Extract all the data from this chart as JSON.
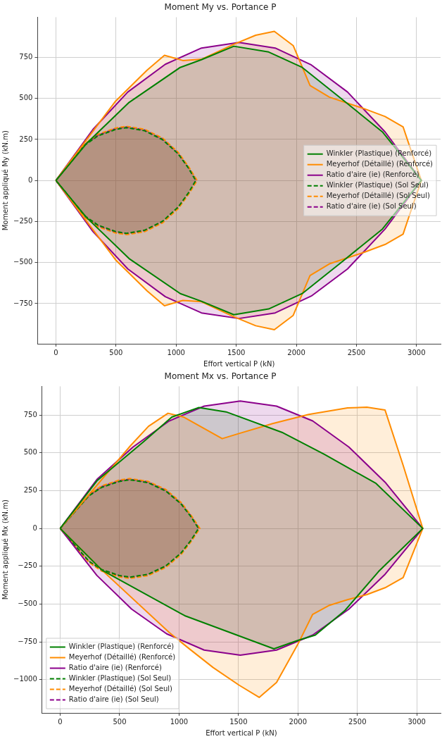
{
  "chart_data": [
    {
      "type": "area",
      "title": "Moment My vs. Portance P",
      "xlabel": "Effort vertical P (kN)",
      "ylabel": "Moment appliqué My (kN.m)",
      "xlim": [
        -152,
        3200
      ],
      "ylim": [
        -995,
        995
      ],
      "xticks": [
        0,
        500,
        1000,
        1500,
        2000,
        2500,
        3000
      ],
      "yticks": [
        -750,
        -500,
        -250,
        0,
        250,
        500,
        750
      ],
      "grid": true,
      "legend": "right",
      "series": [
        {
          "name": "Winkler (Plastique) (Renforcé)",
          "color": "#008000",
          "line_style": "solid",
          "x": [
            0,
            254,
            609,
            1034,
            1210,
            1480,
            1770,
            2049,
            2372,
            2716,
            3040,
            2716,
            2372,
            2049,
            1770,
            1480,
            1210,
            1034,
            609,
            254,
            0
          ],
          "values": [
            0,
            225,
            476,
            689,
            736,
            818,
            783,
            689,
            500,
            296,
            0,
            -296,
            -500,
            -689,
            -783,
            -818,
            -736,
            -689,
            -476,
            -225,
            0
          ]
        },
        {
          "name": "Meyerhof (Détaillé) (Renforcé)",
          "color": "#ff8c00",
          "line_style": "solid",
          "x": [
            0,
            497,
            759,
            903,
            1056,
            1211,
            1480,
            1662,
            1817,
            1974,
            2114,
            2275,
            2566,
            2738,
            2888,
            2931,
            3040,
            2931,
            2888,
            2738,
            2566,
            2275,
            2114,
            1974,
            1817,
            1662,
            1480,
            1211,
            1056,
            903,
            759,
            497,
            0
          ],
          "values": [
            0,
            484,
            673,
            763,
            731,
            739,
            830,
            885,
            909,
            822,
            579,
            508,
            437,
            390,
            327,
            233,
            0,
            -233,
            -327,
            -390,
            -437,
            -508,
            -579,
            -822,
            -909,
            -885,
            -830,
            -739,
            -731,
            -763,
            -673,
            -484,
            0
          ]
        },
        {
          "name": "Ratio d'aire (ie) (Renforcé)",
          "color": "#8b008b",
          "line_style": "solid",
          "x": [
            0,
            308,
            598,
            910,
            1211,
            1523,
            1824,
            2125,
            2426,
            2738,
            3040,
            2738,
            2426,
            2125,
            1824,
            1523,
            1211,
            910,
            598,
            308,
            0
          ],
          "values": [
            0,
            311,
            539,
            708,
            807,
            841,
            807,
            704,
            539,
            296,
            0,
            -296,
            -539,
            -704,
            -807,
            -841,
            -807,
            -708,
            -539,
            -311,
            0
          ]
        },
        {
          "name": "Winkler (Plastique) (Sol Seul)",
          "color": "#008000",
          "line_style": "dashed",
          "x": [
            0,
            243,
            350,
            497,
            587,
            738,
            888,
            1017,
            1103,
            1163,
            1103,
            1017,
            888,
            738,
            587,
            497,
            350,
            243,
            0
          ],
          "values": [
            0,
            217,
            272,
            311,
            322,
            303,
            248,
            162,
            75,
            0,
            -75,
            -162,
            -248,
            -303,
            -322,
            -311,
            -272,
            -217,
            0
          ]
        },
        {
          "name": "Meyerhof (Détaillé) (Sol Seul)",
          "color": "#ff8c00",
          "line_style": "dashed",
          "x": [
            0,
            243,
            350,
            497,
            587,
            738,
            888,
            1017,
            1103,
            1175,
            1103,
            1017,
            888,
            738,
            587,
            497,
            350,
            243,
            0
          ],
          "values": [
            0,
            225,
            282,
            320,
            330,
            312,
            258,
            172,
            85,
            0,
            -85,
            -172,
            -258,
            -312,
            -330,
            -320,
            -282,
            -225,
            0
          ]
        },
        {
          "name": "Ratio d'aire (ie) (Sol Seul)",
          "color": "#8b008b",
          "line_style": "dashed",
          "x": [
            0,
            243,
            350,
            497,
            587,
            738,
            888,
            1017,
            1103,
            1169,
            1103,
            1017,
            888,
            738,
            587,
            497,
            350,
            243,
            0
          ],
          "values": [
            0,
            221,
            277,
            316,
            326,
            308,
            253,
            167,
            80,
            0,
            -80,
            -167,
            -253,
            -308,
            -326,
            -316,
            -277,
            -221,
            0
          ]
        }
      ]
    },
    {
      "type": "area",
      "title": "Moment Mx vs. Portance P",
      "xlabel": "Effort vertical P (kN)",
      "ylabel": "Moment appliqué Mx (kN.m)",
      "xlim": [
        -152,
        3200
      ],
      "ylim": [
        -1220,
        940
      ],
      "xticks": [
        0,
        500,
        1000,
        1500,
        2000,
        2500,
        3000
      ],
      "yticks": [
        -1000,
        -750,
        -500,
        -250,
        0,
        250,
        500,
        750
      ],
      "grid": true,
      "legend": "bottom left",
      "series": [
        {
          "name": "Winkler (Plastique) (Renforcé)",
          "color": "#008000",
          "line_style": "solid",
          "x": [
            0,
            309,
            700,
            939,
            1167,
            1396,
            1874,
            2222,
            2657,
            3050,
            2678,
            2396,
            2146,
            2000,
            1798,
            1048,
            352,
            0
          ],
          "values": [
            0,
            315,
            573,
            737,
            800,
            771,
            633,
            490,
            298,
            0,
            -285,
            -542,
            -705,
            -740,
            -796,
            -577,
            -276,
            0
          ]
        },
        {
          "name": "Meyerhof (Détaillé) (Renforcé)",
          "color": "#ff8c00",
          "line_style": "solid",
          "x": [
            0,
            591,
            743,
            907,
            1037,
            1363,
            1504,
            1787,
            2091,
            2417,
            2580,
            2733,
            2885,
            3050,
            2885,
            2733,
            2580,
            2417,
            2265,
            2124,
            2000,
            1820,
            1674,
            1504,
            1287,
            1091,
            917,
            352,
            0
          ],
          "values": [
            0,
            547,
            676,
            762,
            737,
            594,
            628,
            694,
            754,
            797,
            802,
            783,
            418,
            0,
            -325,
            -392,
            -437,
            -471,
            -508,
            -568,
            -765,
            -1019,
            -1117,
            -1036,
            -920,
            -799,
            -688,
            -276,
            0
          ]
        },
        {
          "name": "Ratio d'aire (ie) (Renforcé)",
          "color": "#8b008b",
          "line_style": "solid",
          "x": [
            0,
            309,
            613,
            917,
            1211,
            1515,
            1820,
            2124,
            2428,
            2733,
            3050,
            2733,
            2428,
            2124,
            1820,
            1515,
            1211,
            896,
            602,
            309,
            0
          ],
          "values": [
            0,
            324,
            539,
            711,
            809,
            843,
            809,
            711,
            539,
            306,
            0,
            -303,
            -534,
            -705,
            -804,
            -838,
            -804,
            -697,
            -534,
            -311,
            0
          ]
        },
        {
          "name": "Winkler (Plastique) (Sol Seul)",
          "color": "#008000",
          "line_style": "dashed",
          "x": [
            0,
            243,
            350,
            497,
            587,
            738,
            888,
            1017,
            1103,
            1163,
            1103,
            1017,
            888,
            738,
            587,
            497,
            350,
            243,
            0
          ],
          "values": [
            0,
            217,
            272,
            311,
            322,
            303,
            248,
            162,
            75,
            0,
            -75,
            -162,
            -248,
            -303,
            -322,
            -311,
            -272,
            -217,
            0
          ]
        },
        {
          "name": "Meyerhof (Détaillé) (Sol Seul)",
          "color": "#ff8c00",
          "line_style": "dashed",
          "x": [
            0,
            243,
            350,
            497,
            587,
            738,
            888,
            1017,
            1103,
            1175,
            1103,
            1017,
            888,
            738,
            587,
            497,
            350,
            243,
            0
          ],
          "values": [
            0,
            225,
            282,
            320,
            330,
            312,
            258,
            172,
            85,
            0,
            -85,
            -172,
            -258,
            -312,
            -330,
            -320,
            -282,
            -225,
            0
          ]
        },
        {
          "name": "Ratio d'aire (ie) (Sol Seul)",
          "color": "#8b008b",
          "line_style": "dashed",
          "x": [
            0,
            243,
            350,
            497,
            587,
            738,
            888,
            1017,
            1103,
            1169,
            1103,
            1017,
            888,
            738,
            587,
            497,
            350,
            243,
            0
          ],
          "values": [
            0,
            221,
            277,
            316,
            326,
            308,
            253,
            167,
            80,
            0,
            -80,
            -167,
            -253,
            -308,
            -326,
            -316,
            -277,
            -221,
            0
          ]
        }
      ]
    }
  ]
}
